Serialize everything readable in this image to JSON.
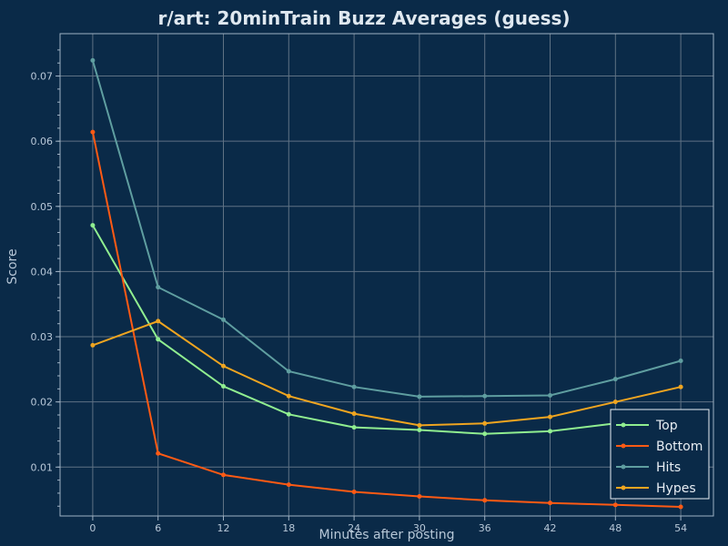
{
  "chart_data": {
    "type": "line",
    "title": "r/art: 20minTrain Buzz Averages (guess)",
    "xlabel": "Minutes after posting",
    "ylabel": "Score",
    "x": [
      0,
      6,
      12,
      18,
      24,
      30,
      36,
      42,
      48,
      54
    ],
    "xticks": [
      "0",
      "6",
      "12",
      "18",
      "24",
      "30",
      "36",
      "42",
      "48",
      "54"
    ],
    "yticks": [
      "0.01",
      "0.02",
      "0.03",
      "0.04",
      "0.05",
      "0.06",
      "0.07"
    ],
    "ylim": [
      0.0025,
      0.0765
    ],
    "xlim": [
      -3,
      57
    ],
    "grid": true,
    "legend_position": "bottom-right",
    "series": [
      {
        "name": "Top",
        "color": "#90ee90",
        "values": [
          0.0471,
          0.0296,
          0.0224,
          0.0181,
          0.0161,
          0.0157,
          0.0151,
          0.0155,
          0.0167,
          0.0182
        ]
      },
      {
        "name": "Bottom",
        "color": "#ff5a14",
        "values": [
          0.0614,
          0.0121,
          0.0088,
          0.0073,
          0.0062,
          0.0055,
          0.0049,
          0.0045,
          0.0042,
          0.0039
        ]
      },
      {
        "name": "Hits",
        "color": "#5f9ea0",
        "values": [
          0.0724,
          0.0376,
          0.0326,
          0.0247,
          0.0223,
          0.0208,
          0.0209,
          0.021,
          0.0235,
          0.0263
        ]
      },
      {
        "name": "Hypes",
        "color": "#f0a520",
        "values": [
          0.0287,
          0.0324,
          0.0255,
          0.0209,
          0.0182,
          0.0164,
          0.0167,
          0.0177,
          0.02,
          0.0223
        ]
      }
    ]
  }
}
